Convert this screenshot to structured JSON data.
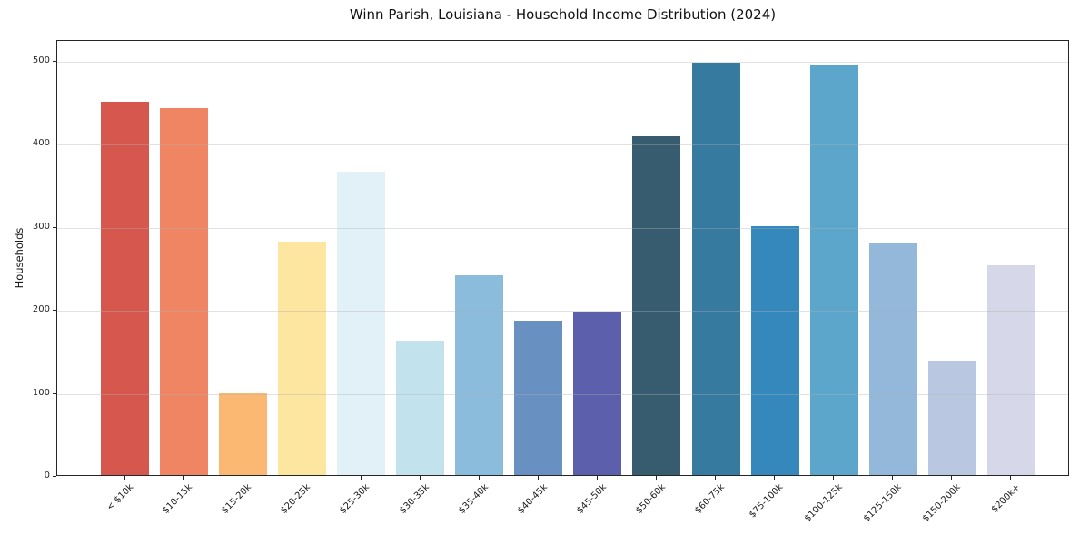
{
  "title": "Winn Parish, Louisiana - Household Income Distribution (2024)",
  "chart_data": {
    "type": "bar",
    "title": "Winn Parish, Louisiana - Household Income Distribution (2024)",
    "xlabel": "",
    "ylabel": "Households",
    "categories": [
      "< $10k",
      "$10-15k",
      "$15-20k",
      "$20-25k",
      "$25-30k",
      "$30-35k",
      "$35-40k",
      "$40-45k",
      "$45-50k",
      "$50-60k",
      "$60-75k",
      "$75-100k",
      "$100-125k",
      "$125-150k",
      "$150-200k",
      "$200k+"
    ],
    "values": [
      450,
      442,
      99,
      281,
      365,
      162,
      241,
      186,
      197,
      408,
      497,
      300,
      493,
      279,
      138,
      253
    ],
    "bar_colors": [
      "#d6574e",
      "#f08564",
      "#fab872",
      "#fce6a0",
      "#e2f1f7",
      "#c2e3ed",
      "#8cbcdb",
      "#6890c1",
      "#5b5fac",
      "#385c6f",
      "#377aa0",
      "#3488bb",
      "#5da6cb",
      "#94b8d9",
      "#b9c8e0",
      "#d6d7e9"
    ],
    "ylim": [
      0,
      525
    ],
    "yticks": [
      0,
      100,
      200,
      300,
      400,
      500
    ],
    "grid": true,
    "legend": false,
    "x_tick_rotation_deg": 45
  },
  "colors": {
    "background": "#ffffff",
    "spine": "#262626",
    "grid": "#b0b0b0",
    "tick_label": "#262626",
    "title_text": "#111111"
  }
}
